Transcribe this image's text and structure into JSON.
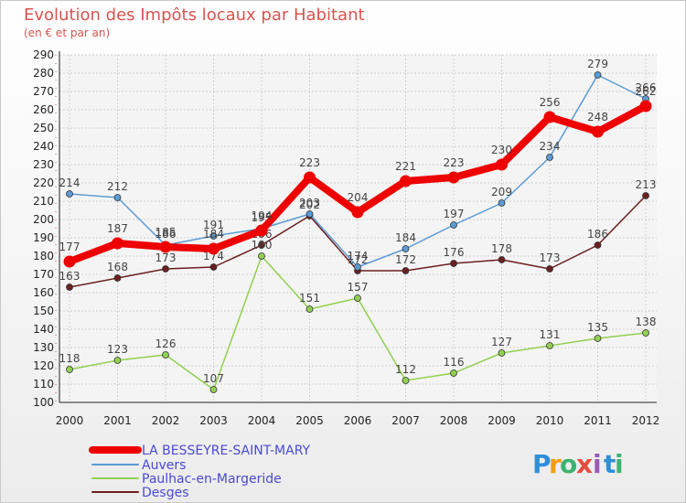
{
  "chart_data": {
    "type": "line",
    "title": "Evolution des Impôts locaux par Habitant",
    "subtitle": "(en € et par an)",
    "x": [
      "2000",
      "2001",
      "2002",
      "2003",
      "2004",
      "2005",
      "2006",
      "2007",
      "2008",
      "2009",
      "2010",
      "2011",
      "2012"
    ],
    "ylim": [
      100,
      290
    ],
    "yticks": [
      100,
      110,
      120,
      130,
      140,
      150,
      160,
      170,
      180,
      190,
      200,
      210,
      220,
      230,
      240,
      250,
      260,
      270,
      280,
      290
    ],
    "grid": true,
    "legend_position": "bottom-left",
    "series": [
      {
        "name": "LA BESSEYRE-SAINT-MARY",
        "color": "#ee0000",
        "values": [
          177,
          187,
          185,
          184,
          194,
          223,
          204,
          221,
          223,
          230,
          256,
          248,
          262
        ]
      },
      {
        "name": "Auvers",
        "color": "#5b9bd5",
        "values": [
          214,
          212,
          186,
          191,
          195,
          203,
          174,
          184,
          197,
          209,
          234,
          279,
          266
        ]
      },
      {
        "name": "Paulhac-en-Margeride",
        "color": "#92d050",
        "values": [
          118,
          123,
          126,
          107,
          180,
          151,
          157,
          112,
          116,
          127,
          131,
          135,
          138
        ]
      },
      {
        "name": "Desges",
        "color": "#6b1f1f",
        "values": [
          163,
          168,
          173,
          174,
          186,
          202,
          172,
          172,
          176,
          178,
          173,
          186,
          213
        ]
      }
    ]
  },
  "logo": {
    "letters": [
      "P",
      "r",
      "o",
      "x",
      "i",
      "t",
      "i"
    ],
    "colors": [
      "#2e8fd8",
      "#f39c12",
      "#3cb371",
      "#e74c3c",
      "#9b59b6",
      "#2e8fd8",
      "#3cb371"
    ]
  }
}
